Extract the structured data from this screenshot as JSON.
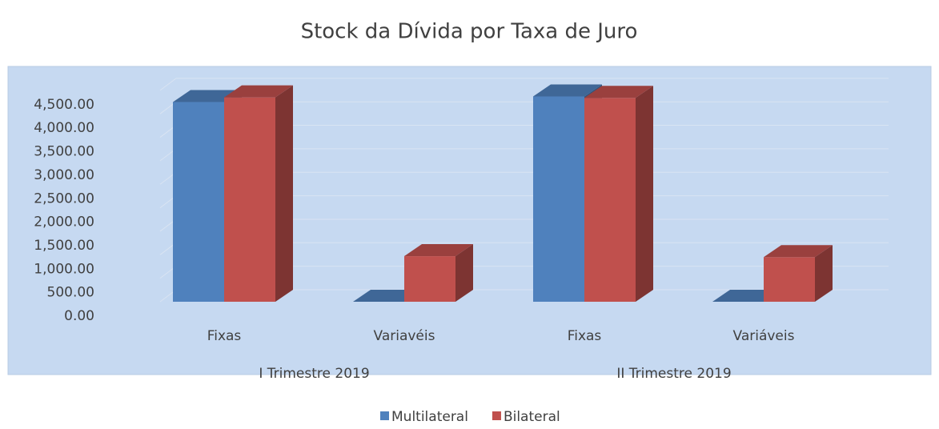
{
  "chart_data": {
    "type": "bar3d",
    "title": "Stock da Dívida por Taxa de Juro",
    "categories": [
      "Fixas",
      "Variavéis",
      "Fixas",
      "Variáveis"
    ],
    "groups": [
      "I Trimestre 2019",
      "II Trimestre 2019"
    ],
    "series": [
      {
        "name": "Multilateral",
        "color": "#4f81bd",
        "values": [
          4250,
          0,
          4370,
          0
        ]
      },
      {
        "name": "Bilateral",
        "color": "#c0504d",
        "values": [
          4350,
          970,
          4340,
          950
        ]
      }
    ],
    "ylim": [
      0,
      5000
    ],
    "yticks": [
      {
        "value": 0,
        "label": "0.00"
      },
      {
        "value": 500,
        "label": "500.00"
      },
      {
        "value": 1000,
        "label": "1,000.00"
      },
      {
        "value": 1500,
        "label": "1,500.00"
      },
      {
        "value": 2000,
        "label": "2,000.00"
      },
      {
        "value": 2500,
        "label": "2,500.00"
      },
      {
        "value": 3000,
        "label": "3,000.00"
      },
      {
        "value": 3500,
        "label": "3,500.00"
      },
      {
        "value": 4000,
        "label": "4,000.00"
      },
      {
        "value": 4500,
        "label": "4,500.00"
      }
    ],
    "grid": true,
    "legend": "bottom"
  }
}
